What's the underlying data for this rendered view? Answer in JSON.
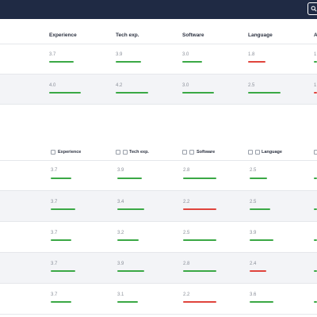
{
  "toolbar": {
    "search_icon": "search-icon"
  },
  "table1": {
    "headers": [
      "Experience",
      "Tech exp.",
      "Software",
      "Language",
      "A"
    ],
    "rows": [
      {
        "values": [
          "3.7",
          "3.9",
          "3.0",
          "1.8",
          "1"
        ],
        "status": [
          "green",
          "green",
          "green",
          "red",
          "green"
        ]
      },
      {
        "values": [
          "4.0",
          "4.2",
          "3.0",
          "2.5",
          "1"
        ],
        "status": [
          "green",
          "green",
          "green",
          "green",
          "red"
        ]
      }
    ]
  },
  "table2": {
    "headers": [
      "Experience",
      "Tech exp.",
      "Software",
      "Language",
      ""
    ],
    "rows": [
      {
        "values": [
          "3.7",
          "3.9",
          "2.8",
          "2.5",
          ""
        ],
        "status": [
          "green",
          "green",
          "green",
          "green",
          "green"
        ]
      },
      {
        "values": [
          "3.7",
          "3.4",
          "2.2",
          "2.5",
          ""
        ],
        "status": [
          "green",
          "green",
          "red",
          "green",
          "green"
        ]
      },
      {
        "values": [
          "3.7",
          "3.2",
          "2.5",
          "3.9",
          ""
        ],
        "status": [
          "green",
          "green",
          "green",
          "green",
          "green"
        ]
      },
      {
        "values": [
          "3.7",
          "3.9",
          "2.8",
          "2.4",
          ""
        ],
        "status": [
          "green",
          "green",
          "green",
          "red",
          "green"
        ]
      },
      {
        "values": [
          "3.7",
          "3.1",
          "2.2",
          "3.6",
          ""
        ],
        "status": [
          "green",
          "green",
          "red",
          "green",
          "green"
        ]
      }
    ]
  },
  "colors": {
    "good": "#3aa845",
    "bad": "#e0443c",
    "header": "#1f2a44"
  }
}
